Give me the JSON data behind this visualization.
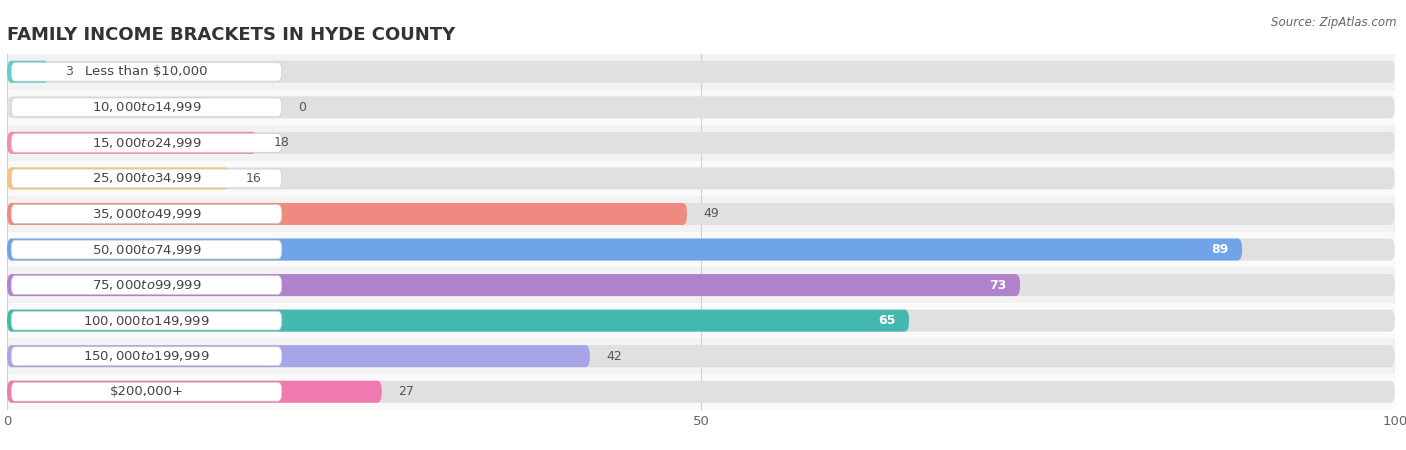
{
  "title": "FAMILY INCOME BRACKETS IN HYDE COUNTY",
  "source": "Source: ZipAtlas.com",
  "categories": [
    "Less than $10,000",
    "$10,000 to $14,999",
    "$15,000 to $24,999",
    "$25,000 to $34,999",
    "$35,000 to $49,999",
    "$50,000 to $74,999",
    "$75,000 to $99,999",
    "$100,000 to $149,999",
    "$150,000 to $199,999",
    "$200,000+"
  ],
  "values": [
    3,
    0,
    18,
    16,
    49,
    89,
    73,
    65,
    42,
    27
  ],
  "bar_colors": [
    "#5ecec8",
    "#a89de0",
    "#f48aaa",
    "#f5c47a",
    "#ee8a80",
    "#6fa5e8",
    "#b082cc",
    "#45b8b0",
    "#a8a4e8",
    "#f07ab0"
  ],
  "xlim": [
    0,
    100
  ],
  "xticks": [
    0,
    50,
    100
  ],
  "title_fontsize": 13,
  "label_fontsize": 9.5,
  "value_fontsize": 9,
  "bar_height": 0.62,
  "row_bg_colors": [
    "#f2f2f2",
    "#fafafa"
  ],
  "bar_bg_color": "#e0e0e0",
  "label_box_color": "#ffffff",
  "grid_color": "#d0d0d0"
}
